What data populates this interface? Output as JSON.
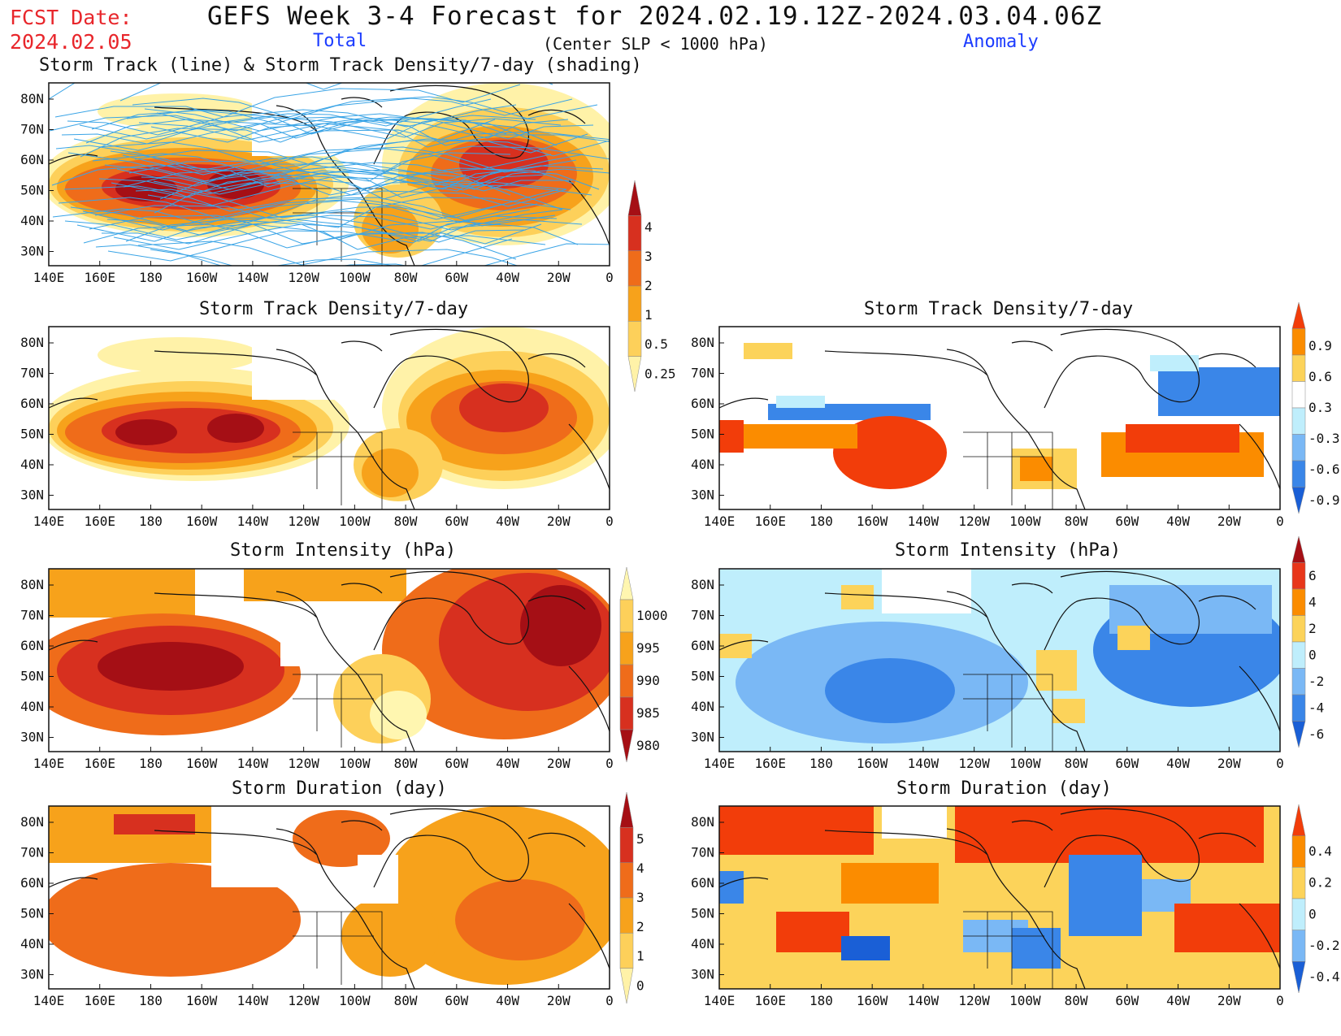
{
  "header": {
    "fcst_label": "FCST Date:",
    "fcst_date": "2024.02.05",
    "title": "GEFS Week 3-4 Forecast for 2024.02.19.12Z-2024.03.04.06Z",
    "total_label": "Total",
    "subtitle": "(Center SLP < 1000 hPa)",
    "anomaly_label": "Anomaly"
  },
  "axes": {
    "lon_labels": [
      "140E",
      "160E",
      "180",
      "160W",
      "140W",
      "120W",
      "100W",
      "80W",
      "60W",
      "40W",
      "20W",
      "0"
    ],
    "lat_labels": [
      "80N",
      "70N",
      "60N",
      "50N",
      "40N",
      "30N"
    ]
  },
  "panels": {
    "track": "Storm Track (line) & Storm Track Density/7-day (shading)",
    "density_total": "Storm Track Density/7-day",
    "density_anom": "Storm Track Density/7-day",
    "intensity_total": "Storm Intensity (hPa)",
    "intensity_anom": "Storm Intensity (hPa)",
    "duration_total": "Storm Duration (day)",
    "duration_anom": "Storm Duration (day)"
  },
  "colorbars": {
    "density_total": {
      "labels": [
        "4",
        "3",
        "2",
        "1",
        "0.5",
        "0.25"
      ],
      "colors": [
        "#a50f15",
        "#d7301f",
        "#ef6c1a",
        "#f7a21b",
        "#fdd05a",
        "#fff2a8"
      ]
    },
    "density_anom": {
      "labels": [
        "0.9",
        "0.6",
        "0.3",
        "-0.3",
        "-0.6",
        "-0.9"
      ],
      "colors": [
        "#f23d0a",
        "#fb8c00",
        "#fcd35a",
        "#ffffff",
        "#bfeefc",
        "#7ab8f5",
        "#3a86e8",
        "#1a5fd6"
      ]
    },
    "intensity_total": {
      "labels": [
        "1000",
        "995",
        "990",
        "985",
        "980"
      ],
      "colors": [
        "#fff6b0",
        "#fdd05a",
        "#f7a21b",
        "#ef6c1a",
        "#d7301f",
        "#a50f15"
      ]
    },
    "intensity_anom": {
      "labels": [
        "6",
        "4",
        "2",
        "0",
        "-2",
        "-4",
        "-6"
      ],
      "colors": [
        "#a50f15",
        "#e8361a",
        "#fb8c00",
        "#fcd35a",
        "#bfeefc",
        "#7ab8f5",
        "#3a86e8",
        "#1a5fd6"
      ]
    },
    "duration_total": {
      "labels": [
        "5",
        "4",
        "3",
        "2",
        "1",
        "0"
      ],
      "colors": [
        "#a50f15",
        "#d7301f",
        "#ef6c1a",
        "#f7a21b",
        "#fdd05a",
        "#fff2a8"
      ]
    },
    "duration_anom": {
      "labels": [
        "0.4",
        "0.2",
        "0",
        "-0.2",
        "-0.4"
      ],
      "colors": [
        "#f23d0a",
        "#fb8c00",
        "#fcd35a",
        "#bfeefc",
        "#7ab8f5",
        "#1a5fd6"
      ]
    }
  }
}
